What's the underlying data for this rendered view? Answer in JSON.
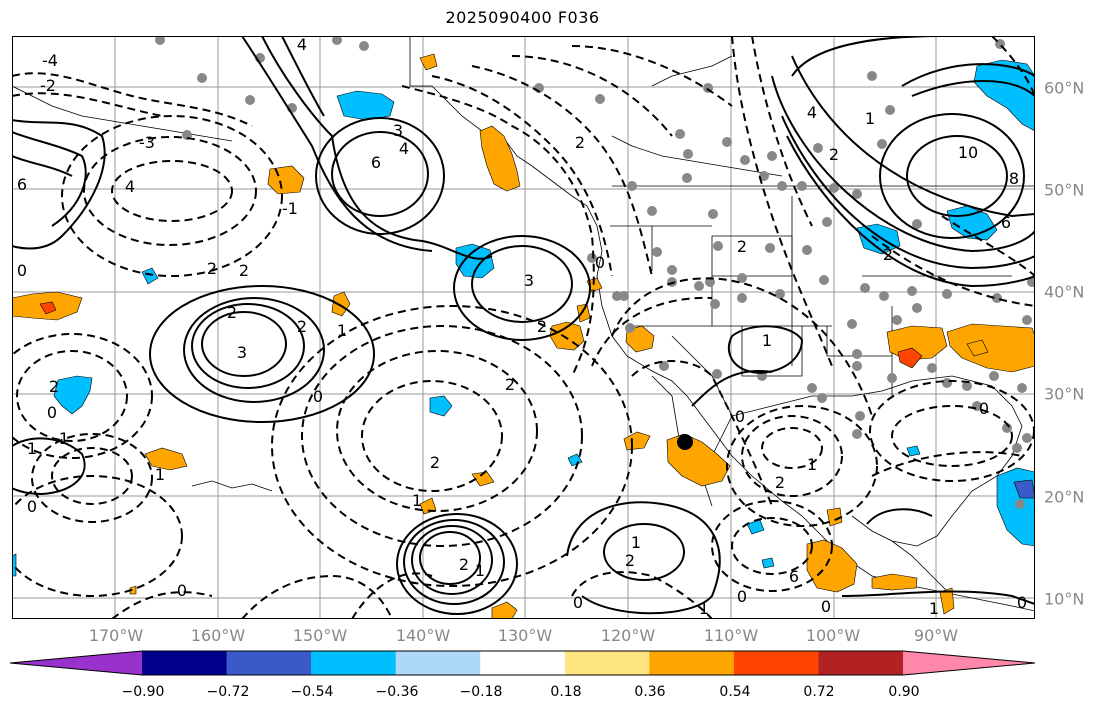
{
  "title": "2025090400 F036",
  "lon_labels": [
    "170°W",
    "160°W",
    "150°W",
    "140°W",
    "130°W",
    "120°W",
    "110°W",
    "100°W",
    "90°W"
  ],
  "lat_labels": [
    "60°N",
    "50°N",
    "40°N",
    "30°N",
    "20°N",
    "10°N"
  ],
  "colorbar": {
    "ticks": [
      "−0.90",
      "−0.72",
      "−0.54",
      "−0.36",
      "−0.18",
      "0.18",
      "0.36",
      "0.54",
      "0.72",
      "0.90"
    ],
    "colors": [
      "#9932cc",
      "#00008b",
      "#3a5bc7",
      "#00bfff",
      "#add8f8",
      "#ffffff",
      "#ffe680",
      "#ffa500",
      "#ff4500",
      "#b22222",
      "#ff88aa"
    ]
  },
  "contour_labels": {
    "neg2_a": "-2",
    "neg4_a": "-4",
    "neg6_a": "6",
    "neg4_b": "4",
    "neg3_a": "-3",
    "neg1_a": "-1",
    "c6_gulf": "6",
    "c4_gulf": "4",
    "c3_gulf": "3",
    "c3_east": "3",
    "c2_east": "2",
    "c3_west": "3",
    "c2_west": "2",
    "c1_west": "1",
    "c2w2": "2",
    "c2w3": "2",
    "z0_a": "0",
    "z0_b": "0",
    "z0_c": "0",
    "z0_d": "0",
    "n1_a": "1",
    "n2_a": "2",
    "n1_b": "1",
    "n1_c": "1",
    "n2_c": "2",
    "c10": "10",
    "c8": "8",
    "c6r": "6",
    "c4r": "4",
    "c2r": "2",
    "c1r": "1",
    "c1_sw": "1",
    "c2_sw": "2",
    "c2_sw2": "2",
    "c1_sw2": "1",
    "c1_mex": "1",
    "c0_mex": "0",
    "c1_mex2": "1",
    "c2_mex": "2",
    "c0_gulf": "0",
    "c1_left": "1",
    "c0_left": "0",
    "c0_left2": "0",
    "c2_left": "2",
    "c2_left2": "2",
    "c1_south": "1",
    "c0_south": "0",
    "c1_south2": "1",
    "c0_se": "0",
    "c6_se": "6",
    "c0_s3": "0",
    "c0_n": "0",
    "c2_n": "2",
    "c2_n2": "2",
    "c2_n3": "2",
    "c4_n": "4"
  }
}
